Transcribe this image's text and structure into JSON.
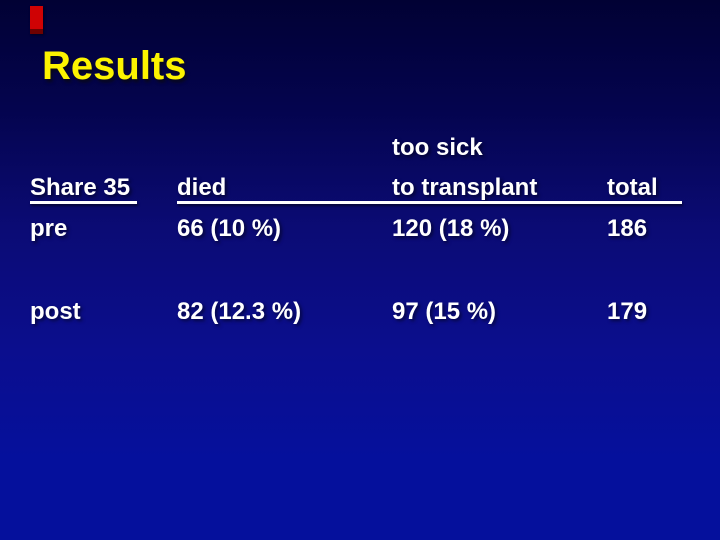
{
  "title": "Results",
  "table": {
    "pre_header": "too sick",
    "header": {
      "col1": "Share 35",
      "col2": "died",
      "col3": "to transplant",
      "col4": "total"
    },
    "rows": [
      {
        "label": "pre",
        "died": "66 (10 %)",
        "too_sick": "120 (18 %)",
        "total": "186"
      },
      {
        "label": "post",
        "died": "82 (12.3 %)",
        "too_sick": "97 (15 %)",
        "total": "179"
      }
    ]
  },
  "colors": {
    "accent_red": "#cf0204",
    "accent_red_shadow": "#6e0101",
    "title_yellow": "#fcf400",
    "table_text": "#ffffff",
    "background_top": "#010134",
    "background_bottom": "#05109c"
  }
}
